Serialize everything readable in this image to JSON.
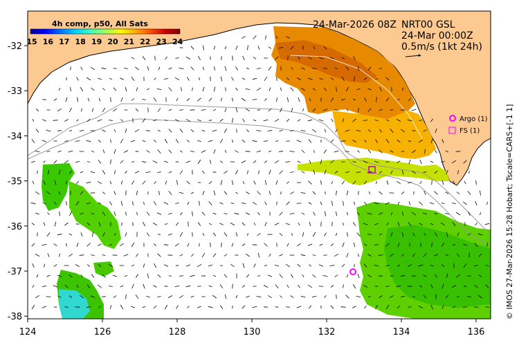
{
  "colorbar": {
    "title": "4h comp, p50, All Sats",
    "ticks": [
      "15",
      "16",
      "17",
      "18",
      "19",
      "20",
      "21",
      "22",
      "23",
      "24"
    ],
    "colors": [
      "#00008f",
      "#0000ff",
      "#0070ff",
      "#00d0ff",
      "#40ffbf",
      "#9fff60",
      "#ffff00",
      "#ffb000",
      "#ff5000",
      "#cf0000",
      "#800000"
    ]
  },
  "header": {
    "date": "24-Mar-2026 08Z",
    "product": "NRT00 GSL",
    "time": "24-Mar 00:00Z",
    "scale": "0.5m/s (1kt 24h)"
  },
  "legend": {
    "argo": "Argo (1)",
    "fs": "FS (1)",
    "argo_color": "#ff00ff",
    "fs_color": "#ff00ff"
  },
  "axes": {
    "x_ticks": [
      "124",
      "126",
      "128",
      "130",
      "132",
      "134",
      "136"
    ],
    "y_ticks": [
      "-32",
      "-33",
      "-34",
      "-35",
      "-36",
      "-37",
      "-38"
    ]
  },
  "side_text": "© IMOS 27-Mar-2026 15:28 Hobart; Tscale=CARS+[-1 1]",
  "colors": {
    "land": "#fcc990",
    "frame": "#000000"
  }
}
